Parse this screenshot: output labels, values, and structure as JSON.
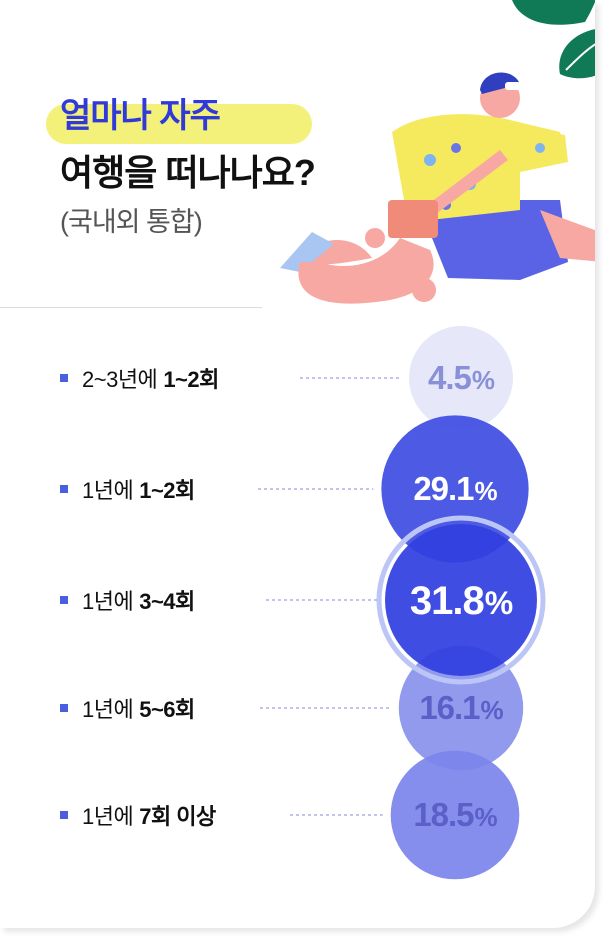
{
  "header": {
    "title_line1": "얼마나 자주",
    "title_line2": "여행을 떠나나요?",
    "subtitle": "(국내외 통합)"
  },
  "chart_data": {
    "type": "bubble",
    "title": "얼마나 자주 여행을 떠나나요?",
    "subtitle": "(국내외 통합)",
    "unit": "%",
    "categories": [
      {
        "prefix": "2~3년에",
        "bold": "1~2회"
      },
      {
        "prefix": "1년에",
        "bold": "1~2회"
      },
      {
        "prefix": "1년에",
        "bold": "3~4회"
      },
      {
        "prefix": "1년에",
        "bold": "5~6회"
      },
      {
        "prefix": "1년에",
        "bold": "7회 이상"
      }
    ],
    "values": [
      4.5,
      29.1,
      31.8,
      16.1,
      18.5
    ],
    "value_labels": [
      "4.5",
      "29.1",
      "31.8",
      "16.1",
      "18.5"
    ],
    "highlight_index": 2,
    "colors": {
      "accent": "#3240e0",
      "bullet": "#4c5ee0",
      "leader": "#7f8bdc"
    }
  }
}
